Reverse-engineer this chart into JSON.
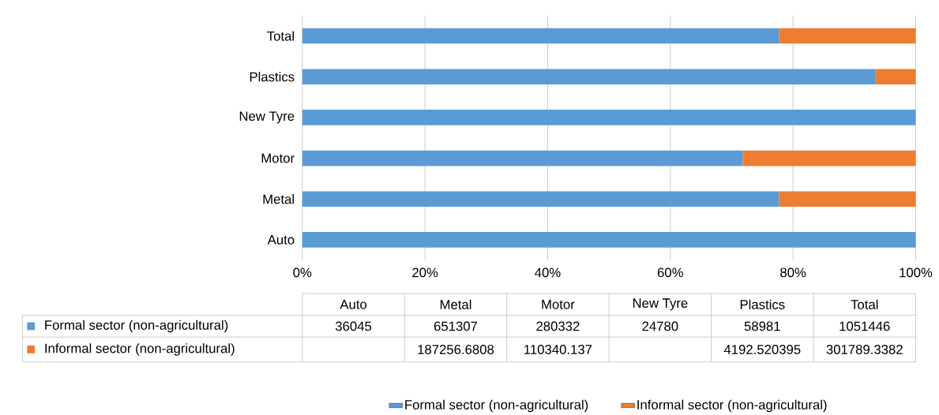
{
  "chart_data": [
    {
      "type": "bar",
      "orientation": "horizontal",
      "stacked": true,
      "categories": [
        "Total",
        "Plastics",
        "New Tyre",
        "Motor",
        "Metal",
        "Auto"
      ],
      "series": [
        {
          "name": "Formal sector (non-agricultural)",
          "color": "#5b9bd5",
          "values": [
            77.7,
            93.4,
            100,
            71.8,
            77.7,
            100
          ]
        },
        {
          "name": "Informal sector (non-agricultural)",
          "color": "#ed7d31",
          "values": [
            22.3,
            6.6,
            null,
            28.2,
            22.3,
            null
          ]
        }
      ],
      "xlim": [
        0,
        100
      ],
      "xticks": [
        {
          "value": 0,
          "label": "0%"
        },
        {
          "value": 20,
          "label": "20%"
        },
        {
          "value": 40,
          "label": "40%"
        },
        {
          "value": 60,
          "label": "60%"
        },
        {
          "value": 80,
          "label": "80%"
        },
        {
          "value": 100,
          "label": "100%"
        }
      ],
      "grid": "x",
      "legend": "bottom"
    },
    {
      "type": "other",
      "categories": [
        "Auto",
        "Metal",
        "Motor",
        "New Tyre",
        "Plastics",
        "Total"
      ],
      "series": [
        {
          "name": "Formal sector (non-agricultural)",
          "color": "#5b9bd5",
          "values": [
            36045,
            651307,
            280332,
            24780,
            58981,
            1051446
          ]
        },
        {
          "name": "Informal sector (non-agricultural)",
          "color": "#ed7d31",
          "values": [
            null,
            187256.6808,
            110340.137,
            null,
            4192.520395,
            301789.3382
          ]
        }
      ],
      "data_labels": true
    }
  ]
}
